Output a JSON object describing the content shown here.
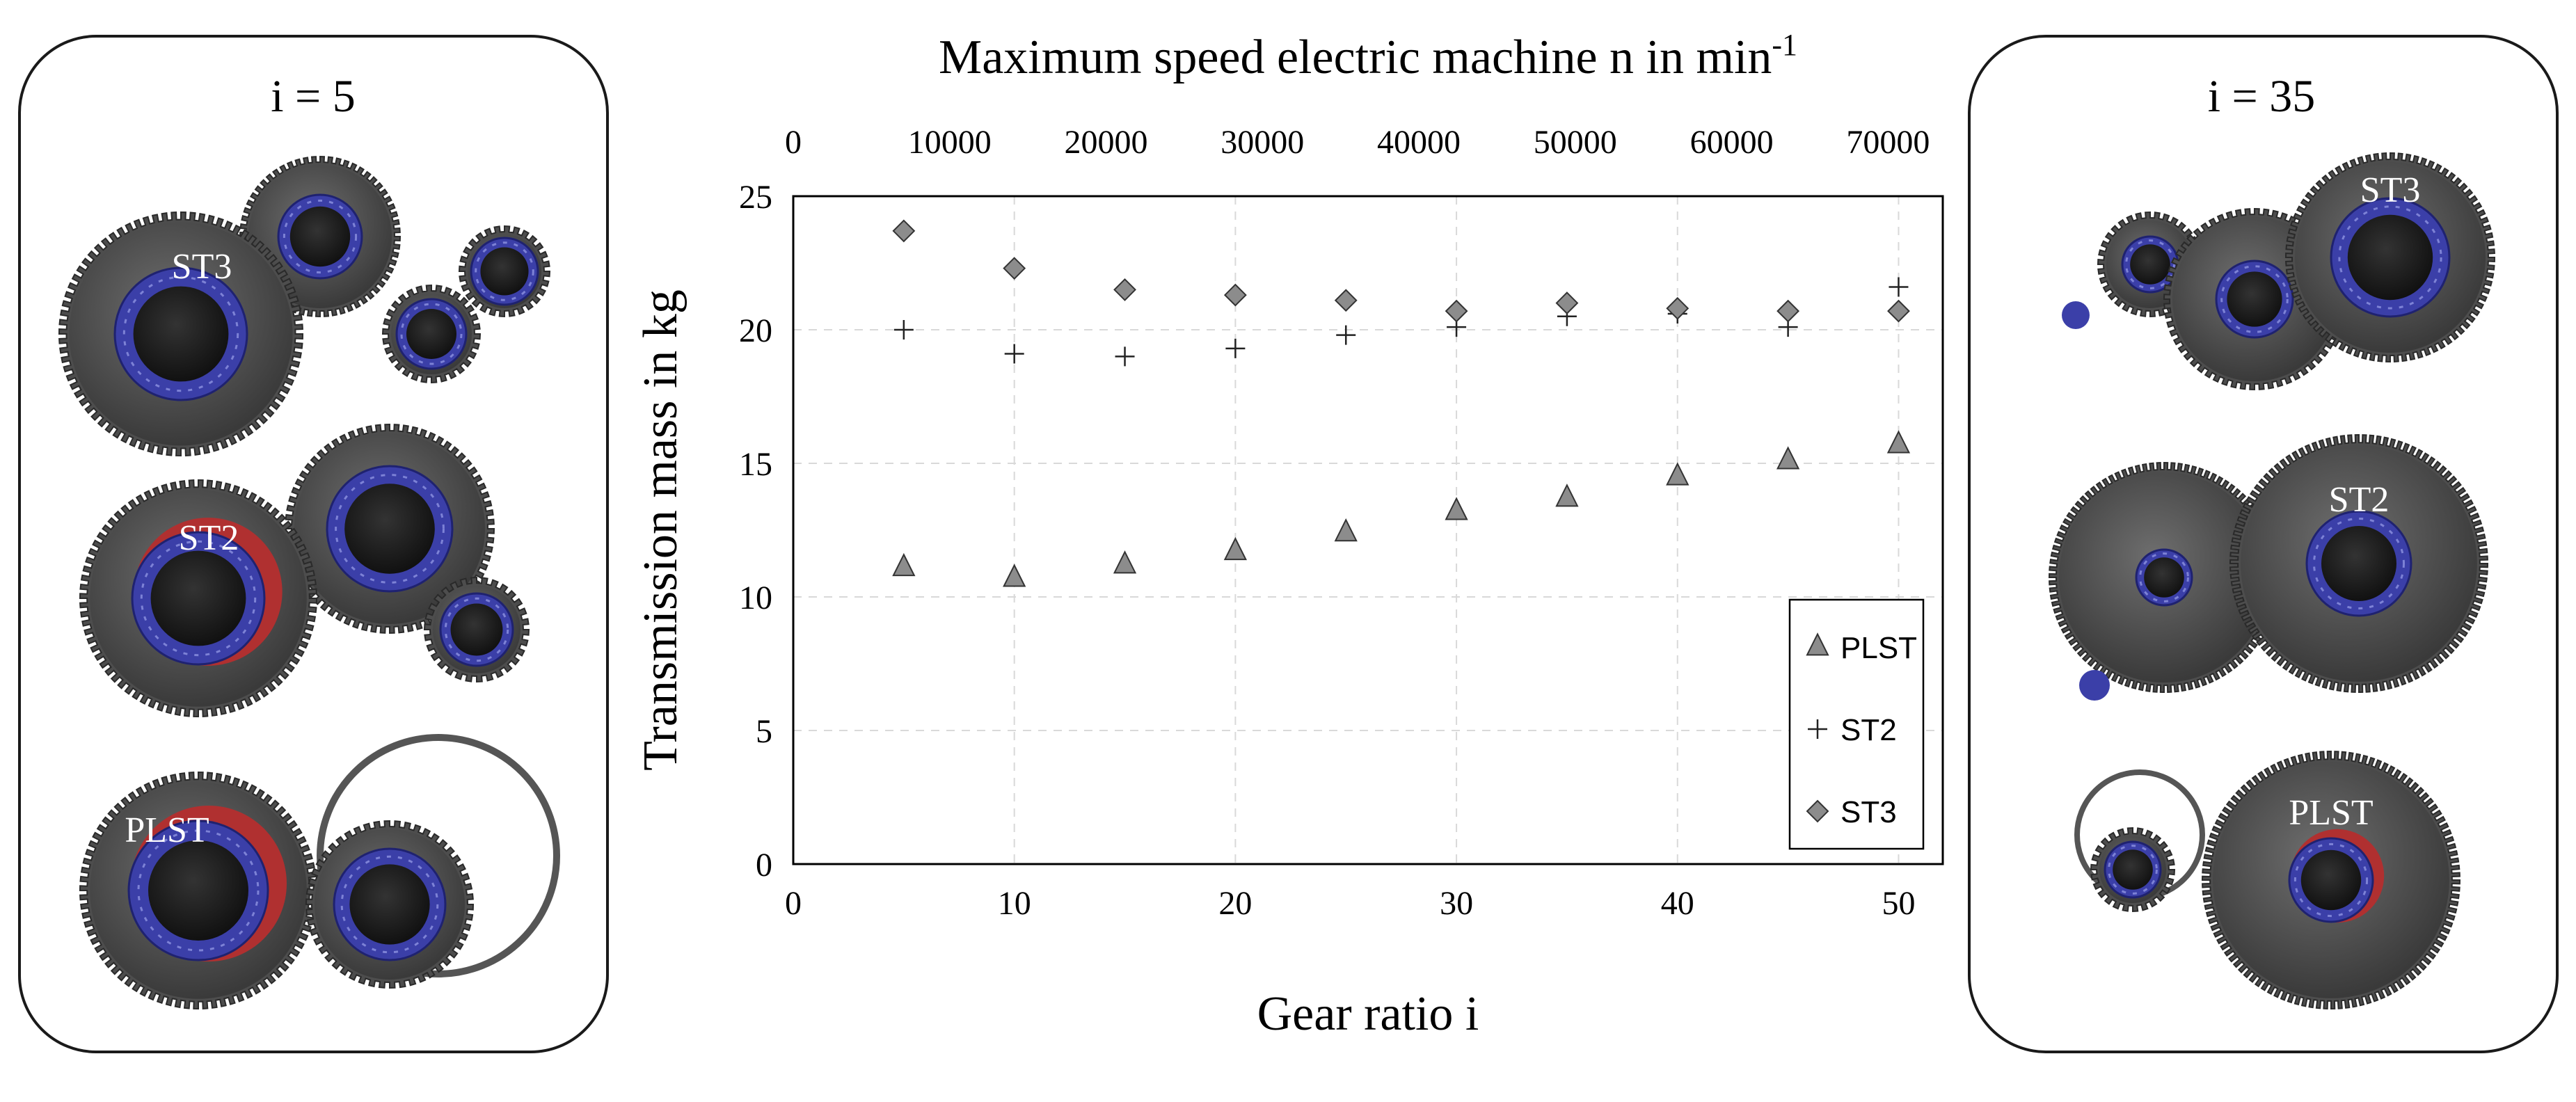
{
  "panels": {
    "left": {
      "title": "i = 5",
      "gearsets": [
        {
          "label": "ST3"
        },
        {
          "label": "ST2"
        },
        {
          "label": "PLST"
        }
      ]
    },
    "right": {
      "title": "i = 35",
      "gearsets": [
        {
          "label": "ST3"
        },
        {
          "label": "ST2"
        },
        {
          "label": "PLST"
        }
      ]
    }
  },
  "colors": {
    "gear": "#4d4d4d",
    "gear_dark": "#262626",
    "bearing": "#3b3fa8",
    "accent_red": "#b03030",
    "marker_fill": "#8c8c8c",
    "grid": "#d9d9d9"
  },
  "chart_data": {
    "type": "scatter",
    "xlabel": "Gear ratio i",
    "ylabel": "Transmission mass in kg",
    "x2label_text": "Maximum speed electric machine n in min",
    "x2label_sup": "-1",
    "xlim": [
      0,
      52
    ],
    "ylim": [
      0,
      25
    ],
    "x2lim": [
      0,
      73500
    ],
    "xticks": [
      "0",
      "10",
      "20",
      "30",
      "40",
      "50"
    ],
    "yticks": [
      "0",
      "5",
      "10",
      "15",
      "20",
      "25"
    ],
    "x2ticks": [
      "0",
      "10000",
      "20000",
      "30000",
      "40000",
      "50000",
      "60000",
      "70000"
    ],
    "grid": true,
    "legend_position": "bottom-right",
    "series": [
      {
        "name": "PLST",
        "marker": "triangle",
        "x": [
          5,
          10,
          15,
          20,
          25,
          30,
          35,
          40,
          45,
          50
        ],
        "y": [
          11.1,
          10.7,
          11.2,
          11.7,
          12.4,
          13.2,
          13.7,
          14.5,
          15.1,
          15.7
        ]
      },
      {
        "name": "ST2",
        "marker": "plus",
        "x": [
          5,
          10,
          15,
          20,
          25,
          30,
          35,
          40,
          45,
          50
        ],
        "y": [
          20.0,
          19.1,
          19.0,
          19.3,
          19.8,
          20.1,
          20.5,
          20.6,
          20.1,
          21.6
        ]
      },
      {
        "name": "ST3",
        "marker": "diamond",
        "x": [
          5,
          10,
          15,
          20,
          25,
          30,
          35,
          40,
          45,
          50
        ],
        "y": [
          23.7,
          22.3,
          21.5,
          21.3,
          21.1,
          20.7,
          21.0,
          20.8,
          20.7,
          20.7
        ]
      }
    ]
  }
}
